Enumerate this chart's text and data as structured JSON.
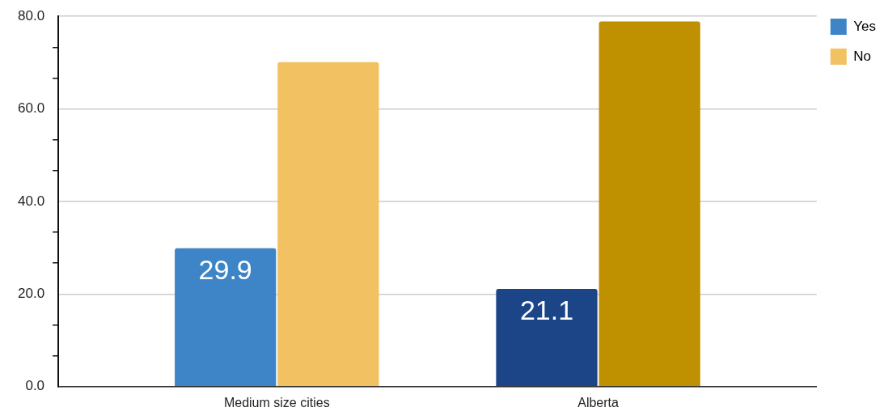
{
  "chart_data": {
    "type": "bar",
    "categories": [
      "Medium size cities",
      "Alberta"
    ],
    "series": [
      {
        "name": "Yes",
        "color": "#3d85c6",
        "colors": [
          "#3d85c6",
          "#1c4587"
        ],
        "values": [
          29.9,
          21.1
        ],
        "value_labels": [
          "29.9",
          "21.1"
        ]
      },
      {
        "name": "No",
        "color": "#f1c162",
        "colors": [
          "#f1c162",
          "#bf9000"
        ],
        "values": [
          70.1,
          78.9
        ]
      }
    ],
    "ylim": [
      0,
      80
    ],
    "yticks": [
      {
        "value": 0,
        "label": "0.0"
      },
      {
        "value": 6.67,
        "label": null
      },
      {
        "value": 13.33,
        "label": null
      },
      {
        "value": 20,
        "label": "20.0"
      },
      {
        "value": 26.67,
        "label": null
      },
      {
        "value": 33.33,
        "label": null
      },
      {
        "value": 40,
        "label": "40.0"
      },
      {
        "value": 46.67,
        "label": null
      },
      {
        "value": 53.33,
        "label": null
      },
      {
        "value": 60,
        "label": "60.0"
      },
      {
        "value": 66.67,
        "label": null
      },
      {
        "value": 73.33,
        "label": null
      },
      {
        "value": 80,
        "label": "80.0"
      }
    ],
    "grid": "y",
    "legend": "top right"
  }
}
